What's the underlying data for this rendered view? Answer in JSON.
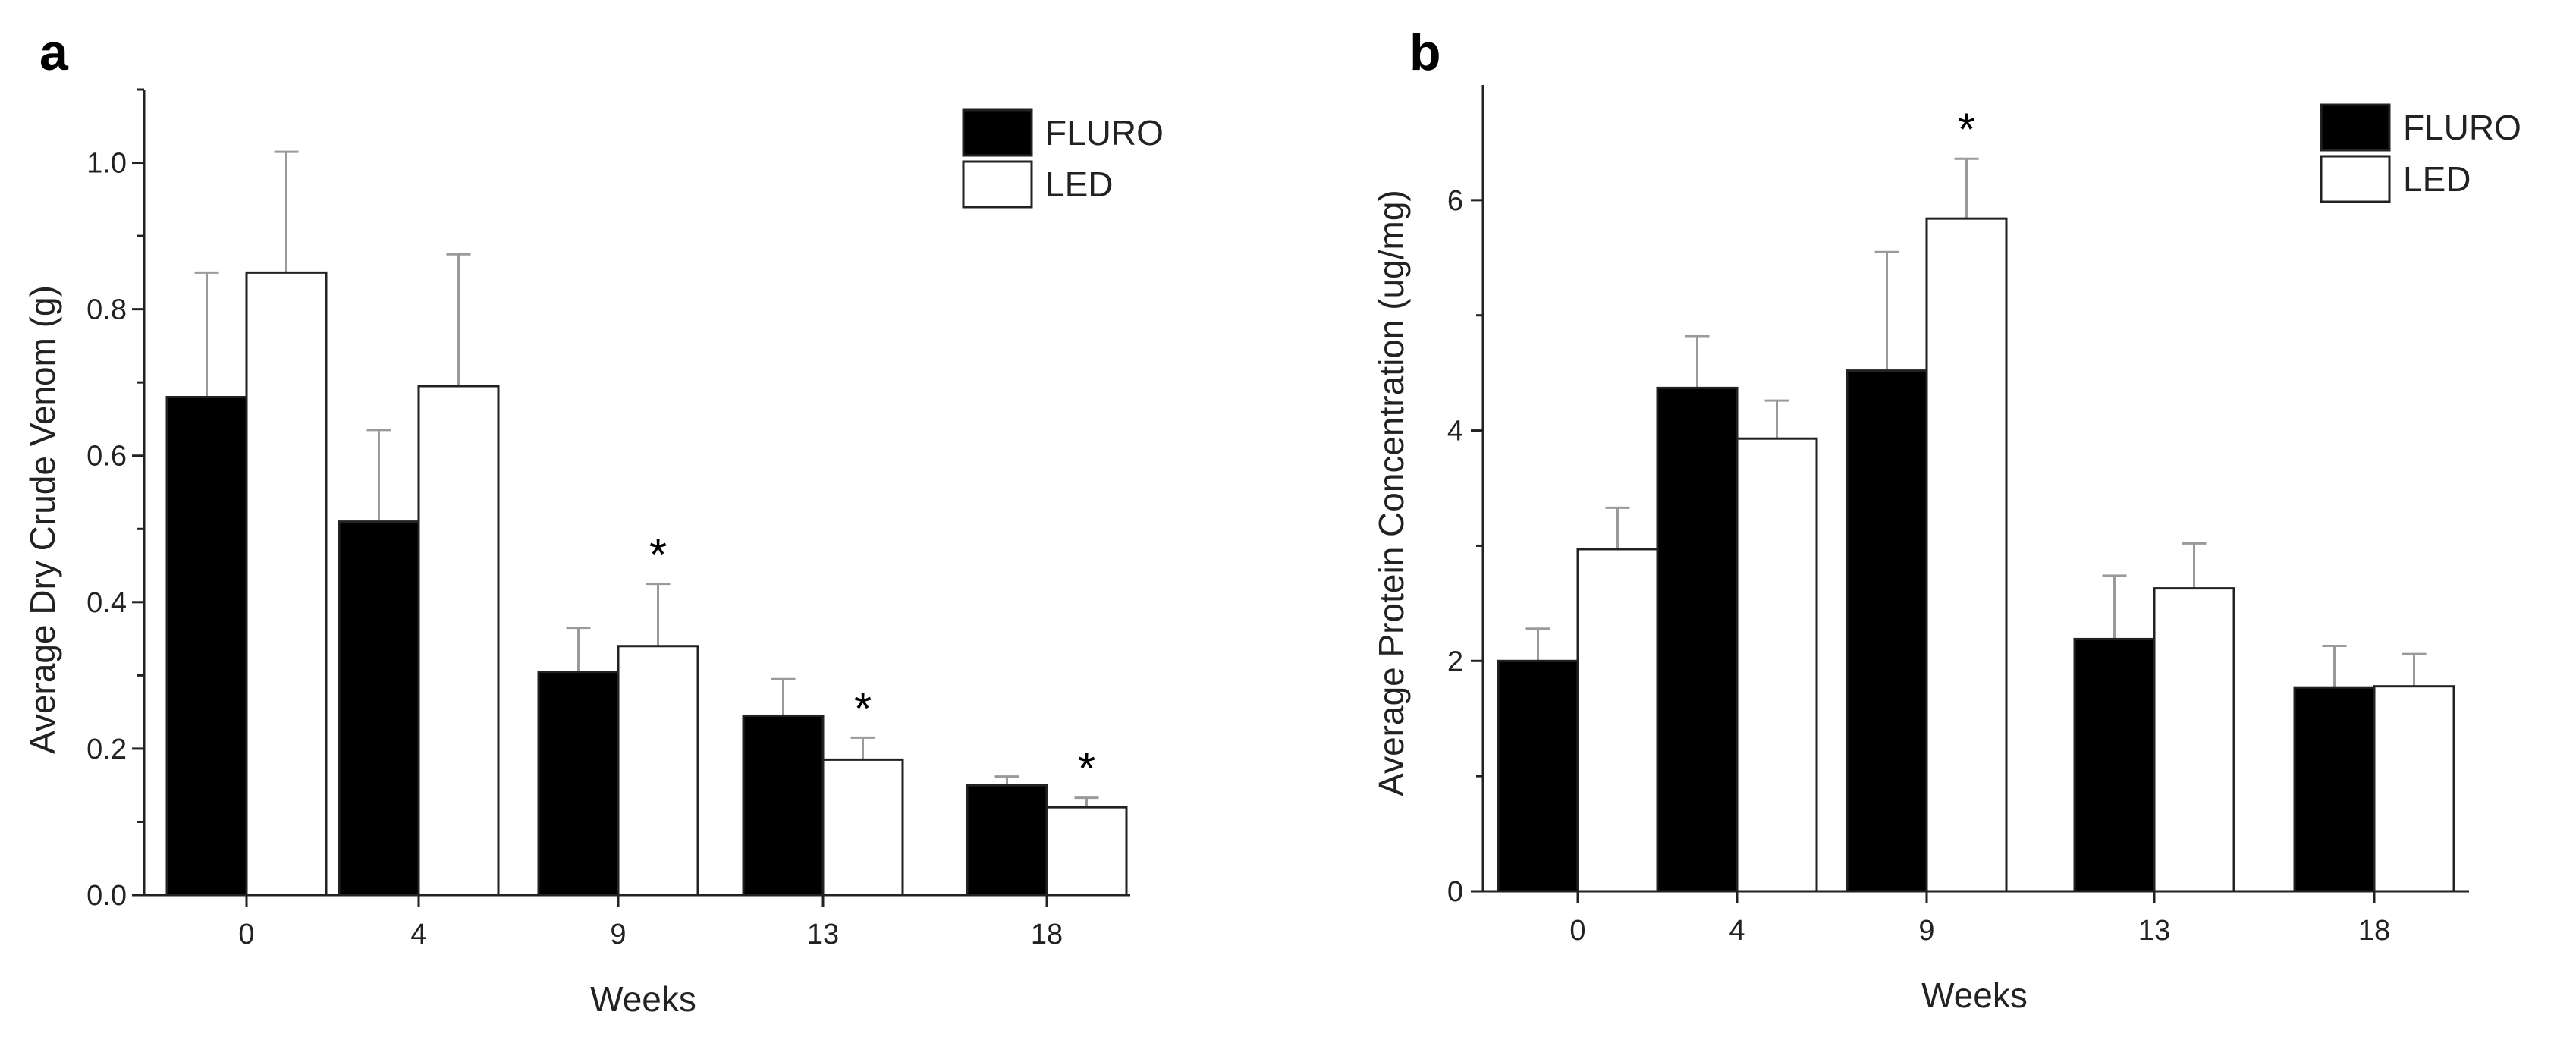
{
  "chart_data": [
    {
      "type": "bar",
      "panel_label": "a",
      "xlabel": "Weeks",
      "ylabel": "Average Dry Crude Venom (g)",
      "categories": [
        "0",
        "4",
        "9",
        "13",
        "18"
      ],
      "ylim": [
        0,
        1.1
      ],
      "yticks": [
        "0.0",
        "0.2",
        "0.4",
        "0.6",
        "0.8",
        "1.0"
      ],
      "series": [
        {
          "name": "FLURO",
          "color": "#000000",
          "values": [
            0.68,
            0.51,
            0.305,
            0.245,
            0.15
          ],
          "errors": [
            0.17,
            0.125,
            0.06,
            0.05,
            0.012
          ]
        },
        {
          "name": "LED",
          "color": "#ffffff",
          "values": [
            0.85,
            0.695,
            0.34,
            0.185,
            0.12
          ],
          "errors": [
            0.165,
            0.18,
            0.085,
            0.03,
            0.013
          ]
        }
      ],
      "significance": [
        "",
        "",
        "*",
        "*",
        "*"
      ],
      "legend_position": "top-right"
    },
    {
      "type": "bar",
      "panel_label": "b",
      "xlabel": "Weeks",
      "ylabel": "Average Protein Concentration (ug/mg)",
      "categories": [
        "0",
        "4",
        "9",
        "13",
        "18"
      ],
      "ylim": [
        0,
        7
      ],
      "yticks": [
        "0",
        "2",
        "4",
        "6"
      ],
      "series": [
        {
          "name": "FLURO",
          "color": "#000000",
          "values": [
            2.0,
            4.37,
            4.52,
            2.19,
            1.77
          ],
          "errors": [
            0.28,
            0.45,
            1.03,
            0.55,
            0.36
          ]
        },
        {
          "name": "LED",
          "color": "#ffffff",
          "values": [
            2.97,
            3.93,
            5.84,
            2.63,
            1.78
          ],
          "errors": [
            0.36,
            0.33,
            0.52,
            0.39,
            0.28
          ]
        }
      ],
      "significance": [
        "",
        "",
        "*",
        "",
        ""
      ],
      "legend_position": "top-right"
    }
  ]
}
